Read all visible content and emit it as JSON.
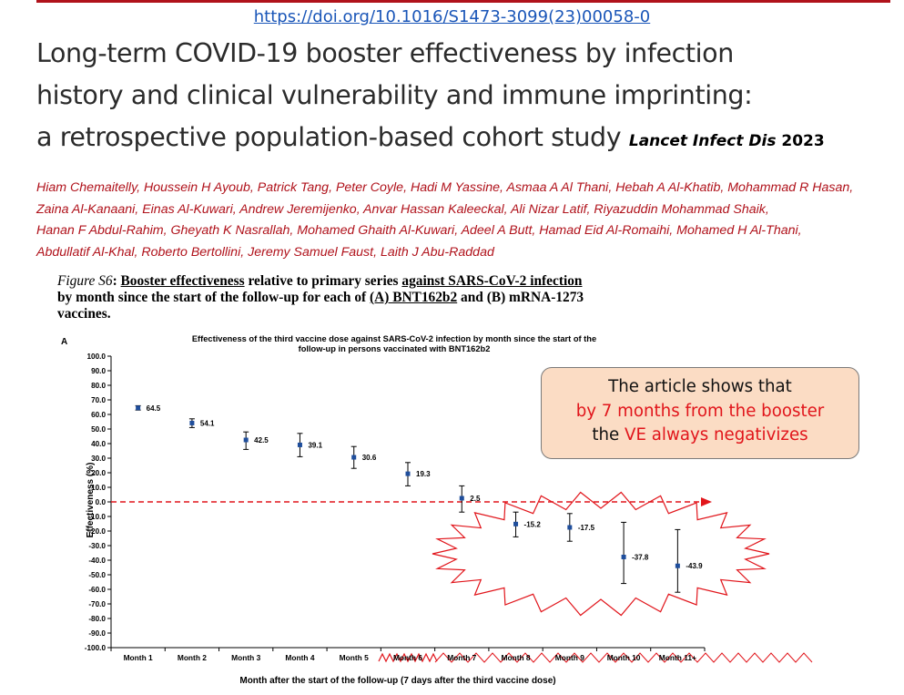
{
  "header": {
    "doi": "https://doi.org/10.1016/S1473-3099(23)00058-0",
    "title_line1": "Long-term COVID-19 booster effectiveness by infection",
    "title_line2": "history and clinical vulnerability and immune imprinting:",
    "title_line3": "a retrospective population-based cohort study",
    "journal": "Lancet Infect Dis",
    "year": "2023"
  },
  "authors": [
    "Hiam Chemaitelly, Houssein H Ayoub, Patrick Tang, Peter Coyle, Hadi M Yassine, Asmaa A Al Thani, Hebah A Al-Khatib, Mohammad R Hasan,",
    "Zaina Al-Kanaani, Einas Al-Kuwari, Andrew Jeremijenko, Anvar Hassan Kaleeckal, Ali Nizar Latif, Riyazuddin Mohammad Shaik,",
    "Hanan F Abdul-Rahim, Gheyath K Nasrallah, Mohamed Ghaith Al-Kuwari, Adeel A Butt, Hamad Eid Al-Romaihi, Mohamed H Al-Thani,",
    "Abdullatif Al-Khal, Roberto Bertollini, Jeremy Samuel Faust, Laith J Abu-Raddad"
  ],
  "caption": {
    "fig_label": "Figure S6",
    "c1": "Booster effectiveness",
    "c2": " relative to primary series ",
    "c3": "against SARS-CoV-2 infection",
    "c4": "by month since the start of the follow-up for each of ",
    "c5": "(A) BNT162b2",
    "c6": " and (B) mRNA-1273",
    "c7": "vaccines."
  },
  "callout": {
    "line1": "The article shows that",
    "line2": "by 7 months from the booster",
    "line3_pre": "the ",
    "line3_red": "VE always negativizes"
  },
  "chart_data": {
    "type": "scatter",
    "panel_label": "A",
    "title_line1": "Effectiveness of the third vaccine dose against SARS-CoV-2 infection by month since the start of the",
    "title_line2": "follow-up in persons vaccinated with BNT162b2",
    "xlabel": "Month after the start of the follow-up (7 days after the third vaccine dose)",
    "ylabel": "Effectiveness (%)",
    "ylim": [
      -100,
      100
    ],
    "ytick_step": 10,
    "grid": false,
    "categories": [
      "Month 1",
      "Month 2",
      "Month 3",
      "Month 4",
      "Month 5",
      "Month 6",
      "Month 7",
      "Month 8",
      "Month 9",
      "Month 10",
      "Month 11+"
    ],
    "values": [
      64.5,
      54.1,
      42.5,
      39.1,
      30.6,
      19.3,
      2.5,
      -15.2,
      -17.5,
      -37.8,
      -43.9
    ],
    "labels": [
      "64.5",
      "54.1",
      "42.5",
      "39.1",
      "30.6",
      "19.3",
      "2.5",
      "-15.2",
      "-17.5",
      "-37.8",
      "-43.9"
    ],
    "ci_lower": [
      63,
      51,
      36,
      31,
      23,
      11,
      -7,
      -24,
      -27,
      -56,
      -62
    ],
    "ci_upper": [
      66,
      57,
      48,
      47,
      38,
      27,
      11,
      -7,
      -8,
      -14,
      -19
    ],
    "reference_line_y": 0,
    "colors": {
      "point": "#1f4e9c",
      "reference_line": "#e1151b",
      "highlight": "#e1151b"
    }
  }
}
